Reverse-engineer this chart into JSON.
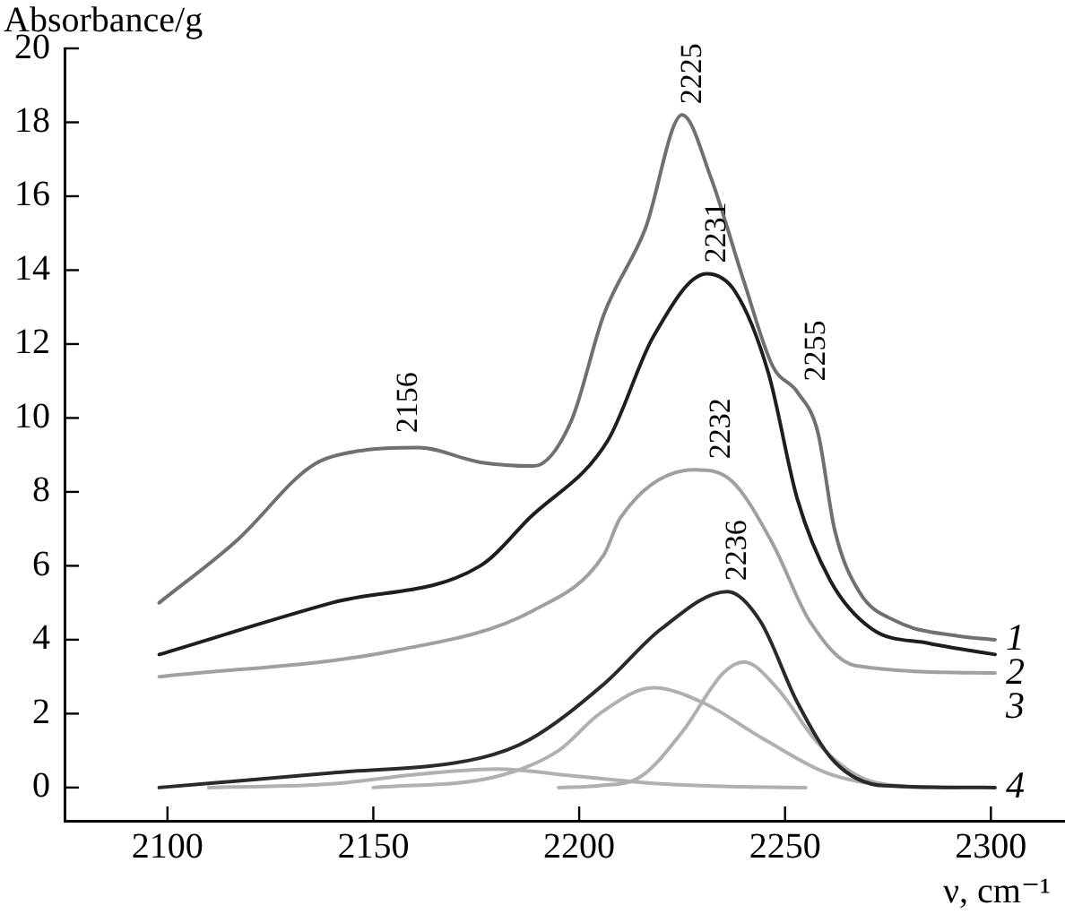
{
  "chart_data": {
    "type": "line",
    "ylabel": "Absorbance/g",
    "xlabel": "ν, cm⁻¹",
    "xlim": [
      2075,
      2318
    ],
    "xticks": [
      2100,
      2150,
      2200,
      2250,
      2300
    ],
    "ylim": [
      -0.9,
      20
    ],
    "yticks": [
      0,
      2,
      4,
      6,
      8,
      10,
      12,
      14,
      16,
      18,
      20
    ],
    "grid": false,
    "legend": false,
    "marker": "none",
    "line_style": "solid",
    "series": [
      {
        "name": "1",
        "color": "#707070",
        "x": [
          2098,
          2117,
          2135,
          2146,
          2161,
          2176,
          2189,
          2198,
          2206,
          2216,
          2225,
          2232,
          2240,
          2247,
          2253,
          2258,
          2262,
          2268,
          2277,
          2292,
          2301
        ],
        "values": [
          5.0,
          6.7,
          8.7,
          9.1,
          9.2,
          8.8,
          8.7,
          9.9,
          12.8,
          15.1,
          18.2,
          16.5,
          13.7,
          11.4,
          10.7,
          9.6,
          7.0,
          5.3,
          4.5,
          4.1,
          4.0
        ]
      },
      {
        "name": "2",
        "color": "#1e1e1e",
        "x": [
          2098,
          2140,
          2176,
          2188,
          2207,
          2218,
          2231,
          2238,
          2246,
          2253,
          2261,
          2271,
          2285,
          2301
        ],
        "values": [
          3.6,
          5.0,
          6.0,
          7.3,
          9.4,
          12.2,
          13.9,
          13.4,
          11.2,
          7.8,
          5.6,
          4.3,
          3.9,
          3.6
        ]
      },
      {
        "name": "3",
        "color": "#a0a0a0",
        "x": [
          2098,
          2155,
          2189,
          2206,
          2210,
          2228,
          2237,
          2247,
          2256,
          2267,
          2301
        ],
        "values": [
          3.0,
          3.7,
          4.8,
          6.3,
          7.3,
          8.6,
          8.3,
          6.6,
          4.5,
          3.3,
          3.1
        ]
      },
      {
        "name": "4",
        "color": "#2a2a2a",
        "x": [
          2098,
          2140,
          2176,
          2188,
          2206,
          2220,
          2236,
          2244,
          2253,
          2262,
          2274,
          2301
        ],
        "values": [
          0.0,
          0.4,
          0.8,
          1.3,
          2.8,
          4.3,
          5.3,
          4.5,
          2.3,
          0.7,
          0.05,
          0.0
        ]
      },
      {
        "color": "#b0b0b0",
        "x": [
          2110,
          2140,
          2160,
          2180,
          2200,
          2220,
          2240,
          2255
        ],
        "values": [
          0,
          0.1,
          0.35,
          0.5,
          0.3,
          0.1,
          0.02,
          0
        ]
      },
      {
        "color": "#b0b0b0",
        "x": [
          2150,
          2180,
          2195,
          2205,
          2218,
          2230,
          2245,
          2260,
          2275,
          2285
        ],
        "values": [
          0,
          0.3,
          1.0,
          2.0,
          2.7,
          2.3,
          1.3,
          0.4,
          0.05,
          0
        ]
      },
      {
        "color": "#b0b0b0",
        "x": [
          2195,
          2205,
          2215,
          2225,
          2235,
          2240,
          2248,
          2258,
          2268,
          2280,
          2292
        ],
        "values": [
          0,
          0.05,
          0.3,
          1.5,
          3.1,
          3.4,
          2.7,
          1.2,
          0.3,
          0.03,
          0
        ]
      }
    ],
    "annotations": [
      {
        "text": "2156",
        "x": 2156,
        "y": 9.3
      },
      {
        "text": "2225",
        "x": 2225,
        "y": 18.2
      },
      {
        "text": "2231",
        "x": 2231,
        "y": 13.9
      },
      {
        "text": "2255",
        "x": 2255,
        "y": 10.7
      },
      {
        "text": "2232",
        "x": 2232,
        "y": 8.6
      },
      {
        "text": "2236",
        "x": 2236,
        "y": 5.3
      }
    ]
  }
}
